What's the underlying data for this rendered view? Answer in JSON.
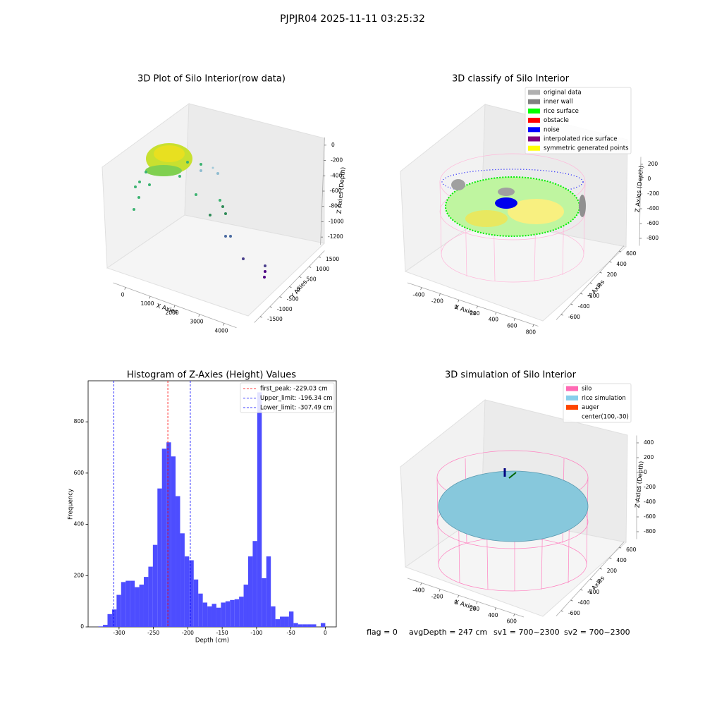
{
  "title": "PJPJR04 2025-11-11 03:25:32",
  "chart_data": [
    {
      "type": "scatter3d",
      "title": "3D Plot of Silo Interior(row data)",
      "xlabel": "X Axies",
      "ylabel": "Y Axies",
      "zlabel": "Z Axies (Depth)",
      "xlim": [
        -500,
        4500
      ],
      "ylim": [
        -1800,
        1800
      ],
      "zlim": [
        -1300,
        100
      ],
      "xticks": [
        0,
        1000,
        2000,
        3000,
        4000
      ],
      "yticks": [
        -1500,
        -1000,
        -500,
        0,
        500,
        1000,
        1500
      ],
      "zticks": [
        -1200,
        -1000,
        -800,
        -600,
        -400,
        -200,
        0
      ]
    },
    {
      "type": "scatter3d",
      "title": "3D classify of Silo Interior",
      "xlabel": "X Axies",
      "ylabel": "Y Axies",
      "zlabel": "Z Axies (Depth)",
      "xlim": [
        -550,
        850
      ],
      "ylim": [
        -700,
        700
      ],
      "zlim": [
        -900,
        300
      ],
      "xticks": [
        -400,
        -200,
        0,
        200,
        400,
        600,
        800
      ],
      "yticks": [
        -600,
        -400,
        -200,
        0,
        200,
        400,
        600
      ],
      "zticks": [
        -800,
        -600,
        -400,
        -200,
        0,
        200
      ],
      "legend": [
        {
          "name": "original data",
          "color": "#b0b0b0"
        },
        {
          "name": "inner wall",
          "color": "#808080"
        },
        {
          "name": "rice surface",
          "color": "#00ff00"
        },
        {
          "name": "obstacle",
          "color": "#ff0000"
        },
        {
          "name": "noise",
          "color": "#0000ff"
        },
        {
          "name": "interpolated rice surface",
          "color": "#800080"
        },
        {
          "name": "symmetric generated points",
          "color": "#ffff00"
        }
      ]
    },
    {
      "type": "histogram",
      "title": "Histogram of Z-Axies (Height) Values",
      "xlabel": "Depth (cm)",
      "ylabel": "Frequency",
      "color": "#4d4dff",
      "xlim": [
        -345,
        16
      ],
      "ylim": [
        0,
        960
      ],
      "xticks": [
        -300,
        -250,
        -200,
        -150,
        -100,
        -50,
        0
      ],
      "yticks": [
        0,
        200,
        400,
        600,
        800
      ],
      "bins": [
        -330,
        -323.4,
        -316.8,
        -310.2,
        -303.6,
        -297,
        -290.4,
        -283.8,
        -277.2,
        -270.6,
        -264,
        -257.4,
        -250.8,
        -244.2,
        -237.6,
        -231,
        -224.4,
        -217.8,
        -211.2,
        -204.6,
        -198,
        -191.4,
        -184.8,
        -178.2,
        -171.6,
        -165,
        -158.4,
        -151.8,
        -145.2,
        -138.6,
        -132,
        -125.4,
        -118.8,
        -112.2,
        -105.6,
        -99,
        -92.4,
        -85.8,
        -79.2,
        -72.6,
        -66,
        -59.4,
        -52.8,
        -46.2,
        -39.6,
        -33,
        -26.4,
        -19.8,
        -13.2,
        -6.6,
        0,
        6.6
      ],
      "counts": [
        2,
        8,
        50,
        68,
        125,
        175,
        180,
        180,
        155,
        165,
        195,
        235,
        320,
        540,
        695,
        720,
        665,
        510,
        365,
        275,
        260,
        185,
        130,
        95,
        80,
        90,
        75,
        95,
        100,
        105,
        108,
        118,
        165,
        275,
        335,
        915,
        190,
        275,
        80,
        30,
        40,
        40,
        60,
        15,
        10,
        10,
        10,
        10,
        0,
        15,
        0
      ],
      "vlines": [
        {
          "name": "first_peak: -229.03 cm",
          "value": -229.03,
          "color": "#ff0000"
        },
        {
          "name": "Upper_limit: -196.34 cm",
          "value": -196.34,
          "color": "#0000ff"
        },
        {
          "name": "Lower_limit: -307.49 cm",
          "value": -307.49,
          "color": "#0000ff"
        }
      ]
    },
    {
      "type": "surface3d",
      "title": "3D simulation of Silo Interior",
      "xlabel": "X Axies",
      "ylabel": "Y Axies",
      "zlabel": "Z Axies (Depth)",
      "xlim": [
        -550,
        700
      ],
      "ylim": [
        -700,
        700
      ],
      "zlim": [
        -900,
        500
      ],
      "xticks": [
        -400,
        -200,
        0,
        200,
        400,
        600
      ],
      "yticks": [
        -600,
        -400,
        -200,
        0,
        200,
        400,
        600
      ],
      "zticks": [
        -800,
        -600,
        -400,
        -200,
        0,
        200,
        400
      ],
      "legend": [
        {
          "name": "silo",
          "color": "#ff69b4"
        },
        {
          "name": "rice simulation",
          "color": "#87ceeb"
        },
        {
          "name": "auger",
          "color": "#ff4500"
        },
        {
          "name": "center(100,-30)"
        }
      ]
    }
  ],
  "footer": [
    "flag = 0",
    "avgDepth = 247 cm",
    "sv1 = 700~2300",
    "sv2 = 700~2300"
  ]
}
